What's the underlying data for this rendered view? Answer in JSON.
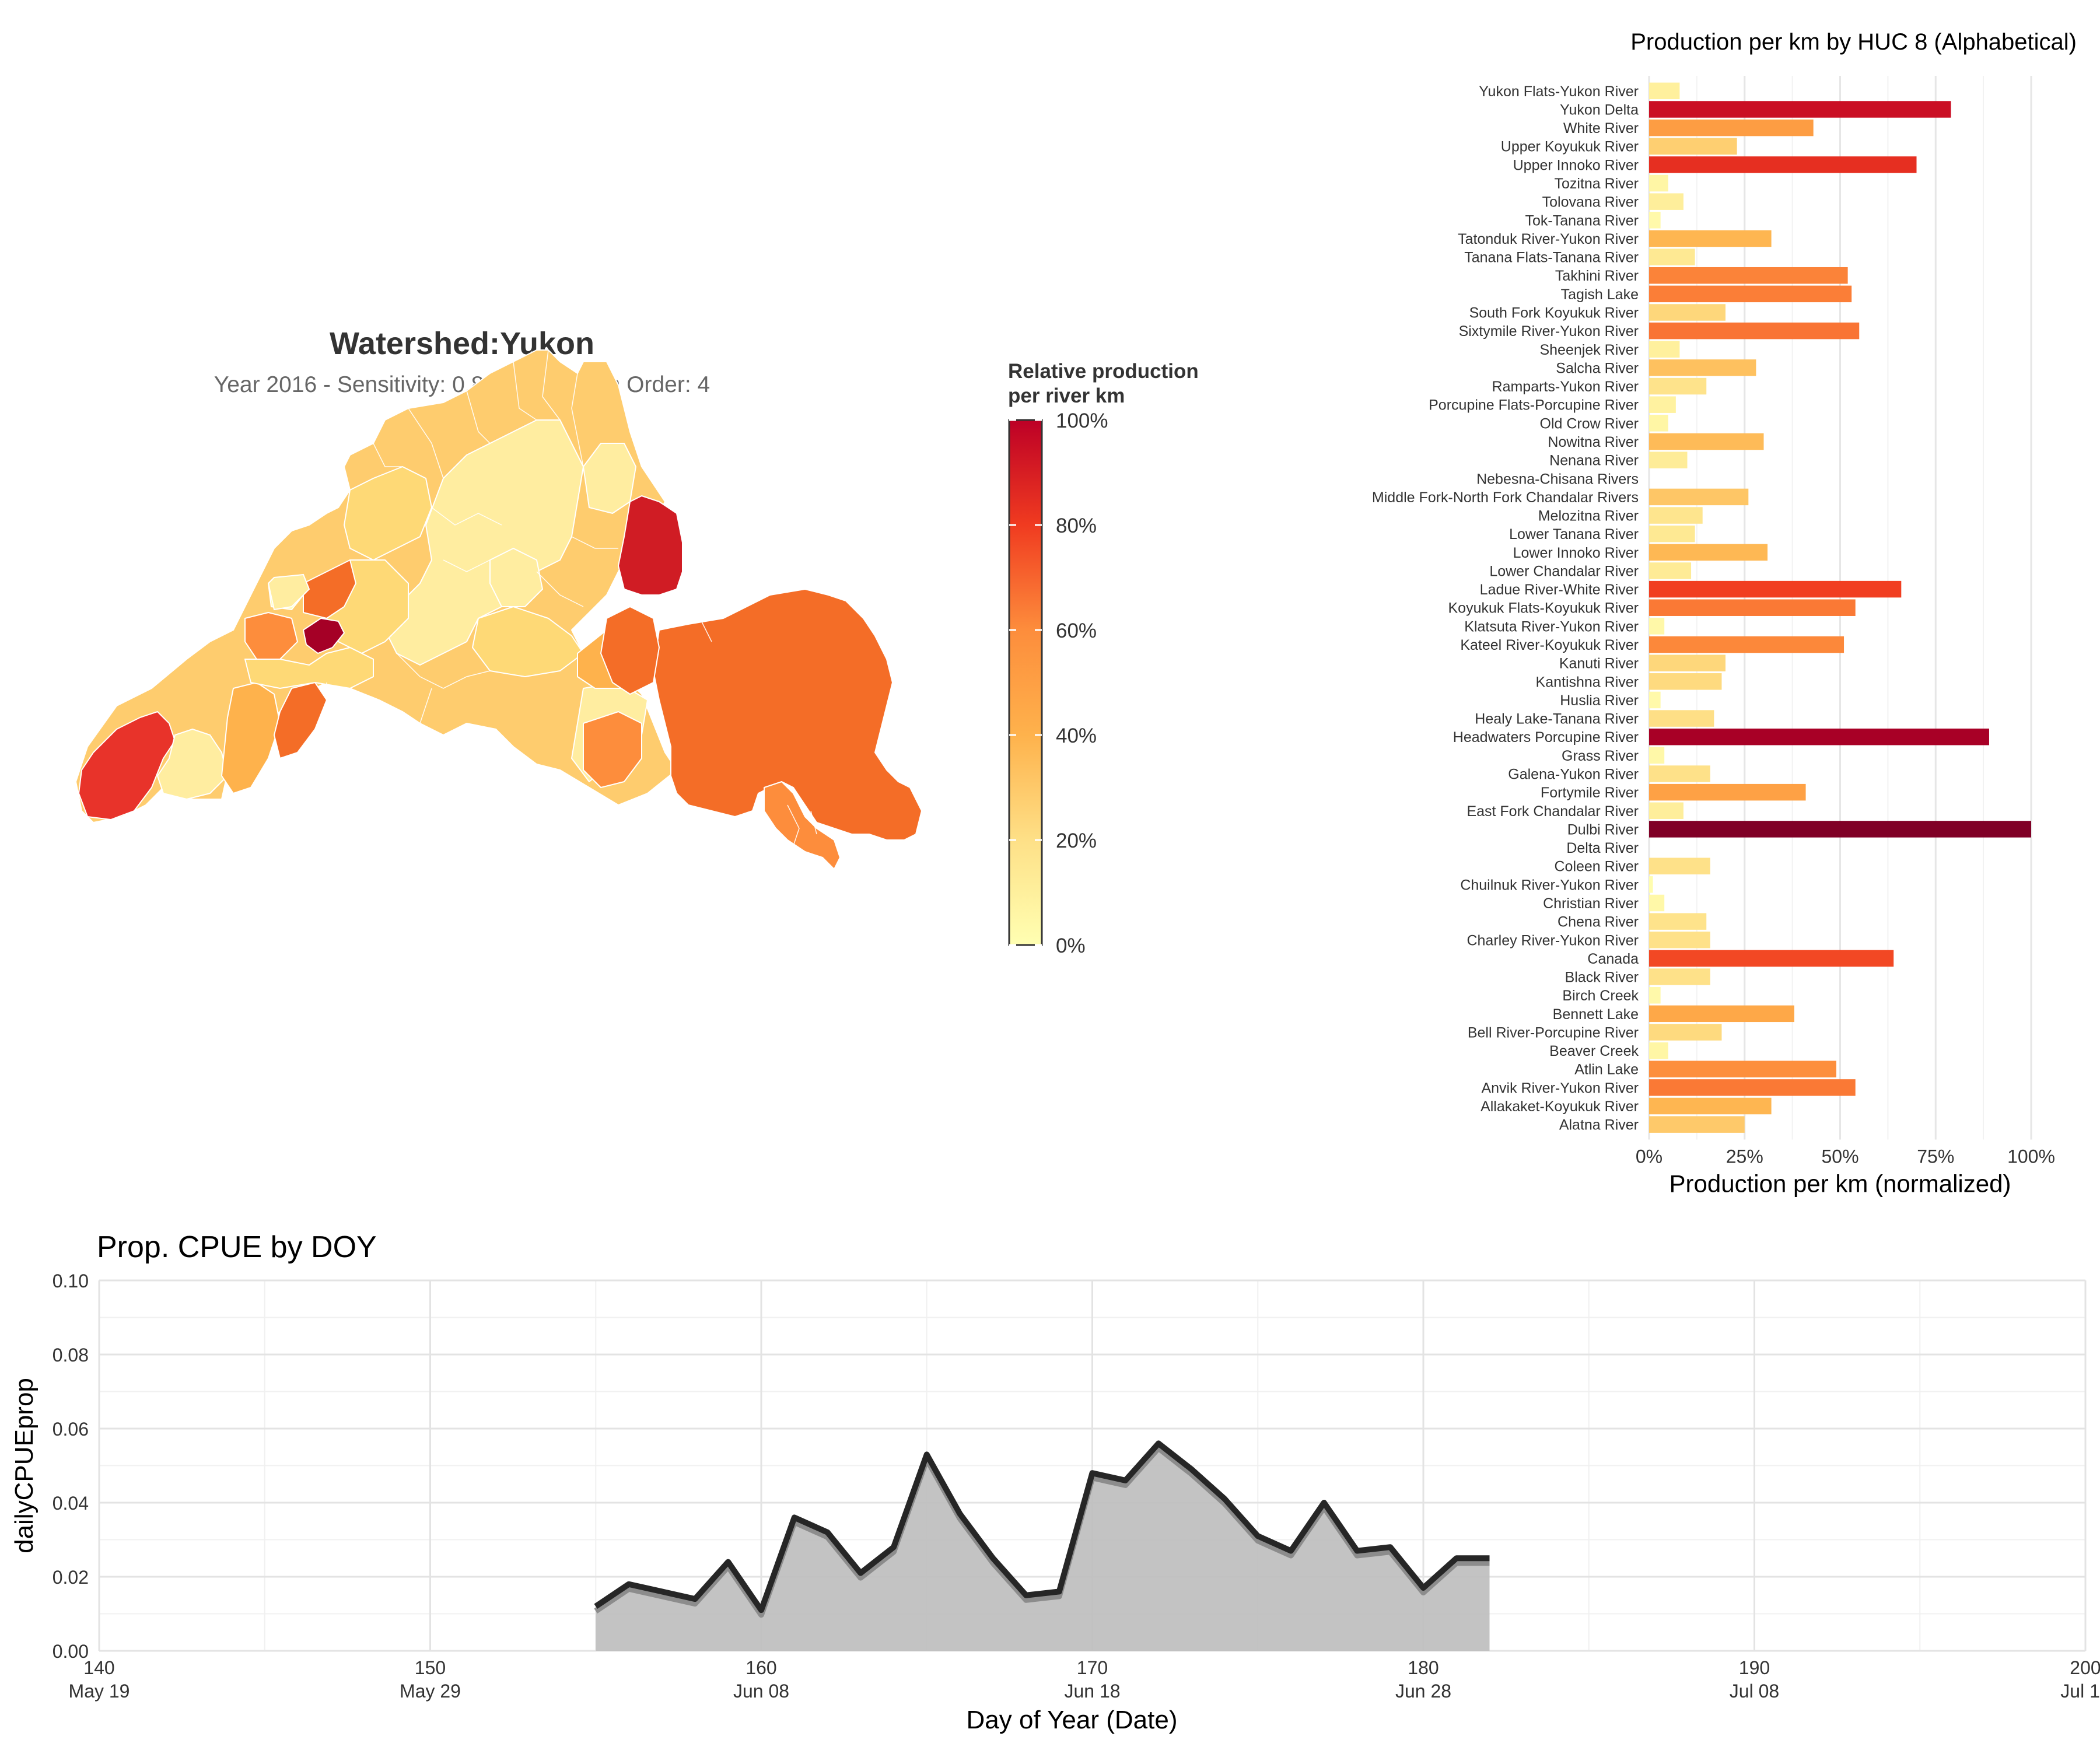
{
  "map": {
    "title": "Watershed:Yukon",
    "subtitle": "Year 2016 - Sensitivity: 0.8 - Min Stream Order: 4",
    "legend_title_line1": "Relative production",
    "legend_title_line2": "per river km",
    "legend_ticks": [
      "100%",
      "80%",
      "60%",
      "40%",
      "20%",
      "0%"
    ],
    "legend_values": [
      1.0,
      0.8,
      0.6,
      0.4,
      0.2,
      0.0
    ],
    "colors": {
      "low": "#ffffb2",
      "mid": "#fd8d3c",
      "high": "#bd0026",
      "border": "#ffffff"
    }
  },
  "chart_data": [
    {
      "type": "bar",
      "orientation": "horizontal",
      "title": "Production per km by HUC 8 (Alphabetical)",
      "xlabel": "Production per km (normalized)",
      "ylabel": "",
      "xlim": [
        0,
        1
      ],
      "x_ticks": [
        "0%",
        "25%",
        "50%",
        "75%",
        "100%"
      ],
      "grid": true,
      "categories": [
        "Yukon Flats-Yukon River",
        "Yukon Delta",
        "White River",
        "Upper Koyukuk River",
        "Upper Innoko River",
        "Tozitna River",
        "Tolovana River",
        "Tok-Tanana River",
        "Tatonduk River-Yukon River",
        "Tanana Flats-Tanana River",
        "Takhini River",
        "Tagish Lake",
        "South Fork Koyukuk River",
        "Sixtymile River-Yukon River",
        "Sheenjek River",
        "Salcha River",
        "Ramparts-Yukon River",
        "Porcupine Flats-Porcupine River",
        "Old Crow River",
        "Nowitna River",
        "Nenana River",
        "Nebesna-Chisana Rivers",
        "Middle Fork-North Fork Chandalar Rivers",
        "Melozitna River",
        "Lower Tanana River",
        "Lower Innoko River",
        "Lower Chandalar River",
        "Ladue River-White River",
        "Koyukuk Flats-Koyukuk River",
        "Klatsuta River-Yukon River",
        "Kateel River-Koyukuk River",
        "Kanuti River",
        "Kantishna River",
        "Huslia River",
        "Healy Lake-Tanana River",
        "Headwaters Porcupine River",
        "Grass River",
        "Galena-Yukon River",
        "Fortymile River",
        "East Fork Chandalar River",
        "Dulbi River",
        "Delta River",
        "Coleen River",
        "Chuilnuk River-Yukon River",
        "Christian River",
        "Chena River",
        "Charley River-Yukon River",
        "Canada",
        "Black River",
        "Birch Creek",
        "Bennett Lake",
        "Bell River-Porcupine River",
        "Beaver Creek",
        "Atlin Lake",
        "Anvik River-Yukon River",
        "Allakaket-Koyukuk River",
        "Alatna River"
      ],
      "values": [
        0.08,
        0.79,
        0.43,
        0.23,
        0.7,
        0.05,
        0.09,
        0.03,
        0.32,
        0.12,
        0.52,
        0.53,
        0.2,
        0.55,
        0.08,
        0.28,
        0.15,
        0.07,
        0.05,
        0.3,
        0.1,
        0.0,
        0.26,
        0.14,
        0.12,
        0.31,
        0.11,
        0.66,
        0.54,
        0.04,
        0.51,
        0.2,
        0.19,
        0.03,
        0.17,
        0.89,
        0.04,
        0.16,
        0.41,
        0.09,
        1.0,
        0.0,
        0.16,
        0.01,
        0.04,
        0.15,
        0.16,
        0.64,
        0.16,
        0.03,
        0.38,
        0.19,
        0.05,
        0.49,
        0.54,
        0.32,
        0.25
      ]
    },
    {
      "type": "area",
      "title": "Prop. CPUE by DOY",
      "xlabel": "Day of Year (Date)",
      "ylabel": "dailyCPUEprop",
      "xlim": [
        140,
        200
      ],
      "ylim": [
        0,
        0.1
      ],
      "x_ticks": [
        "140",
        "150",
        "160",
        "170",
        "180",
        "190",
        "200"
      ],
      "x_tick_dates": [
        "May 19",
        "May 29",
        "Jun 08",
        "Jun 18",
        "Jun 28",
        "Jul 08",
        "Jul 18"
      ],
      "y_ticks": [
        "0.00",
        "0.02",
        "0.04",
        "0.06",
        "0.08",
        "0.10"
      ],
      "grid": true,
      "x": [
        155,
        156,
        157,
        158,
        159,
        160,
        161,
        162,
        163,
        164,
        165,
        166,
        167,
        168,
        169,
        170,
        171,
        172,
        173,
        174,
        175,
        176,
        177,
        178,
        179,
        180,
        181,
        182
      ],
      "y": [
        0.012,
        0.018,
        0.016,
        0.014,
        0.024,
        0.011,
        0.036,
        0.032,
        0.021,
        0.028,
        0.053,
        0.037,
        0.025,
        0.015,
        0.016,
        0.048,
        0.046,
        0.056,
        0.049,
        0.041,
        0.031,
        0.027,
        0.04,
        0.027,
        0.028,
        0.017,
        0.025,
        0.025
      ]
    }
  ]
}
